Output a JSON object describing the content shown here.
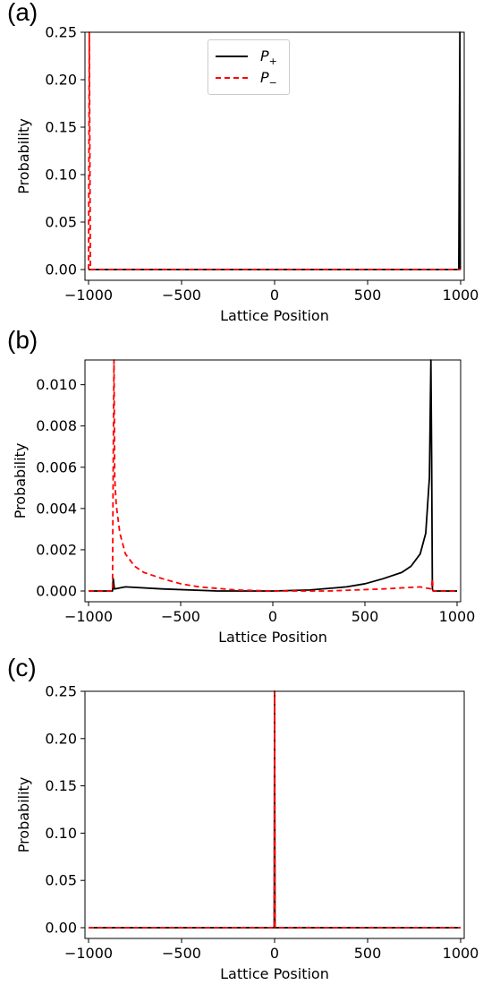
{
  "chart_data": [
    {
      "panel_label": "(a)",
      "type": "line",
      "xlabel": "Lattice Position",
      "ylabel": "Probability",
      "xlim": [
        -1000,
        1000
      ],
      "ylim": [
        0,
        0.25
      ],
      "xticks": [
        -1000,
        -500,
        0,
        500,
        1000
      ],
      "yticks": [
        0.0,
        0.05,
        0.1,
        0.15,
        0.2,
        0.25
      ],
      "ytick_labels": [
        "0.00",
        "0.05",
        "0.10",
        "0.15",
        "0.20",
        "0.25"
      ],
      "legend": "upper center",
      "series": [
        {
          "name": "P+",
          "color": "#000000",
          "style": "solid",
          "points": [
            [
              -1000,
              0
            ],
            [
              990,
              0
            ],
            [
              996,
              0.25
            ],
            [
              998,
              0
            ],
            [
              1000,
              0
            ]
          ]
        },
        {
          "name": "P−",
          "color": "#ff0000",
          "style": "dashed",
          "points": [
            [
              -1000,
              0
            ],
            [
              -996,
              0.25
            ],
            [
              -990,
              0
            ],
            [
              1000,
              0
            ]
          ]
        }
      ]
    },
    {
      "panel_label": "(b)",
      "type": "line",
      "xlabel": "Lattice Position",
      "ylabel": "Probability",
      "xlim": [
        -1000,
        1000
      ],
      "ylim": [
        0,
        0.0112
      ],
      "xticks": [
        -1000,
        -500,
        0,
        500,
        1000
      ],
      "yticks": [
        0.0,
        0.002,
        0.004,
        0.006,
        0.008,
        0.01
      ],
      "ytick_labels": [
        "0.000",
        "0.002",
        "0.004",
        "0.006",
        "0.008",
        "0.010"
      ],
      "series": [
        {
          "name": "P+",
          "color": "#000000",
          "style": "solid",
          "points": [
            [
              -1000,
              0
            ],
            [
              -870,
              0
            ],
            [
              -866,
              0.0006
            ],
            [
              -860,
              0.0001
            ],
            [
              -800,
              0.0002
            ],
            [
              -600,
              0.0001
            ],
            [
              -300,
              0
            ],
            [
              0,
              0
            ],
            [
              200,
              5e-05
            ],
            [
              400,
              0.0002
            ],
            [
              500,
              0.00035
            ],
            [
              600,
              0.0006
            ],
            [
              700,
              0.0009
            ],
            [
              750,
              0.0012
            ],
            [
              800,
              0.0018
            ],
            [
              830,
              0.0028
            ],
            [
              850,
              0.0055
            ],
            [
              858,
              0.0112
            ],
            [
              862,
              0.0065
            ],
            [
              866,
              0.0001
            ],
            [
              870,
              0
            ],
            [
              1000,
              0
            ]
          ]
        },
        {
          "name": "P−",
          "color": "#ff0000",
          "style": "dashed",
          "points": [
            [
              -1000,
              0
            ],
            [
              -870,
              0
            ],
            [
              -866,
              0.0065
            ],
            [
              -862,
              0.0112
            ],
            [
              -858,
              0.0055
            ],
            [
              -850,
              0.0042
            ],
            [
              -830,
              0.0028
            ],
            [
              -800,
              0.0018
            ],
            [
              -750,
              0.0012
            ],
            [
              -700,
              0.0009
            ],
            [
              -600,
              0.0006
            ],
            [
              -500,
              0.00035
            ],
            [
              -400,
              0.0002
            ],
            [
              -200,
              5e-05
            ],
            [
              0,
              0
            ],
            [
              300,
              0
            ],
            [
              600,
              0.0001
            ],
            [
              800,
              0.0002
            ],
            [
              860,
              0.0001
            ],
            [
              866,
              0.0006
            ],
            [
              870,
              0
            ],
            [
              1000,
              0
            ]
          ]
        }
      ]
    },
    {
      "panel_label": "(c)",
      "type": "line",
      "xlabel": "Lattice Position",
      "ylabel": "Probability",
      "xlim": [
        -1000,
        1000
      ],
      "ylim": [
        0,
        0.25
      ],
      "xticks": [
        -1000,
        -500,
        0,
        500,
        1000
      ],
      "yticks": [
        0.0,
        0.05,
        0.1,
        0.15,
        0.2,
        0.25
      ],
      "ytick_labels": [
        "0.00",
        "0.05",
        "0.10",
        "0.15",
        "0.20",
        "0.25"
      ],
      "series": [
        {
          "name": "P+",
          "color": "#000000",
          "style": "solid",
          "points": [
            [
              -1000,
              0
            ],
            [
              -2,
              0
            ],
            [
              0,
              0.25
            ],
            [
              2,
              0
            ],
            [
              1000,
              0
            ]
          ]
        },
        {
          "name": "P−",
          "color": "#ff0000",
          "style": "dashed",
          "points": [
            [
              -1000,
              0
            ],
            [
              -2,
              0
            ],
            [
              0,
              0.25
            ],
            [
              2,
              0
            ],
            [
              1000,
              0
            ]
          ]
        }
      ]
    }
  ],
  "legend": {
    "items": [
      {
        "symbol": "P",
        "subscript": "+",
        "color": "#000000",
        "style": "solid"
      },
      {
        "symbol": "P",
        "subscript": "−",
        "color": "#ff0000",
        "style": "dashed"
      }
    ]
  }
}
